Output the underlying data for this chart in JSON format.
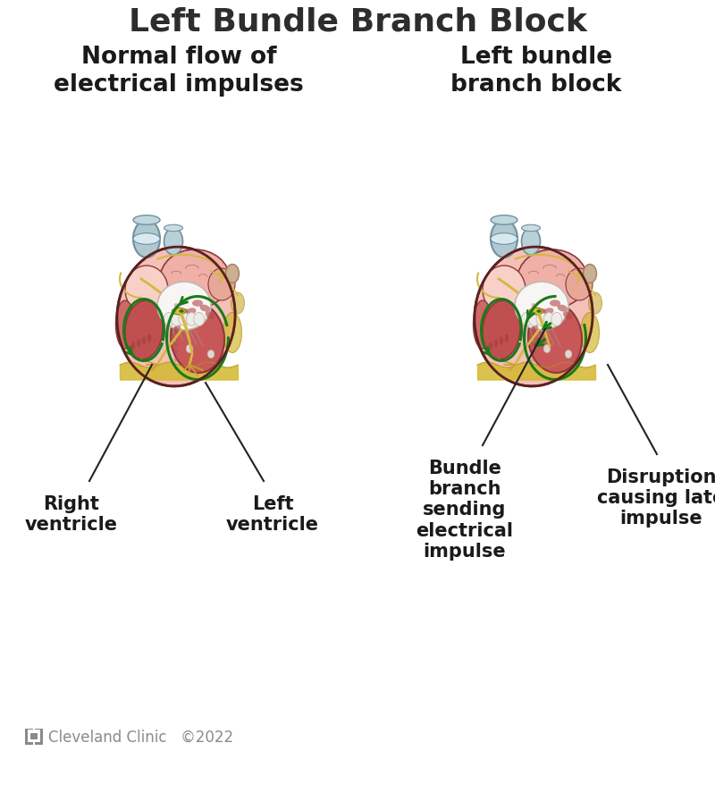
{
  "title": "Left Bundle Branch Block",
  "title_fontsize": 26,
  "title_color": "#2d2d2d",
  "title_fontweight": "bold",
  "bg_color": "#ffffff",
  "left_subtitle": "Normal flow of\nelectrical impulses",
  "right_subtitle": "Left bundle\nbranch block",
  "subtitle_fontsize": 19,
  "subtitle_fontweight": "bold",
  "subtitle_color": "#1a1a1a",
  "cleveland_text": "Cleveland Clinic   ©2022",
  "cleveland_fontsize": 12,
  "cleveland_color": "#8a8a8a",
  "label_fontsize": 15,
  "label_fontweight": "bold",
  "label_color": "#1a1a1a",
  "heart_bg": "#f5c0b8",
  "heart_outer_edge": "#8B3A3A",
  "atria_color": "#f5c8c0",
  "la_color": "#f0c0b0",
  "ra_color": "#e07070",
  "valve_color": "#f0eeec",
  "lv_color": "#c85050",
  "rv_color": "#b84040",
  "muscle_color": "#c06060",
  "septum_color": "#8B3A3A",
  "his_color": "#d4b840",
  "purkinje_color": "#c8a030",
  "green_color": "#1a7a1a",
  "vessel_gray": "#b0c8d0",
  "vessel_edge": "#7090a0",
  "fat_color": "#d4b830",
  "line_color": "#222222"
}
